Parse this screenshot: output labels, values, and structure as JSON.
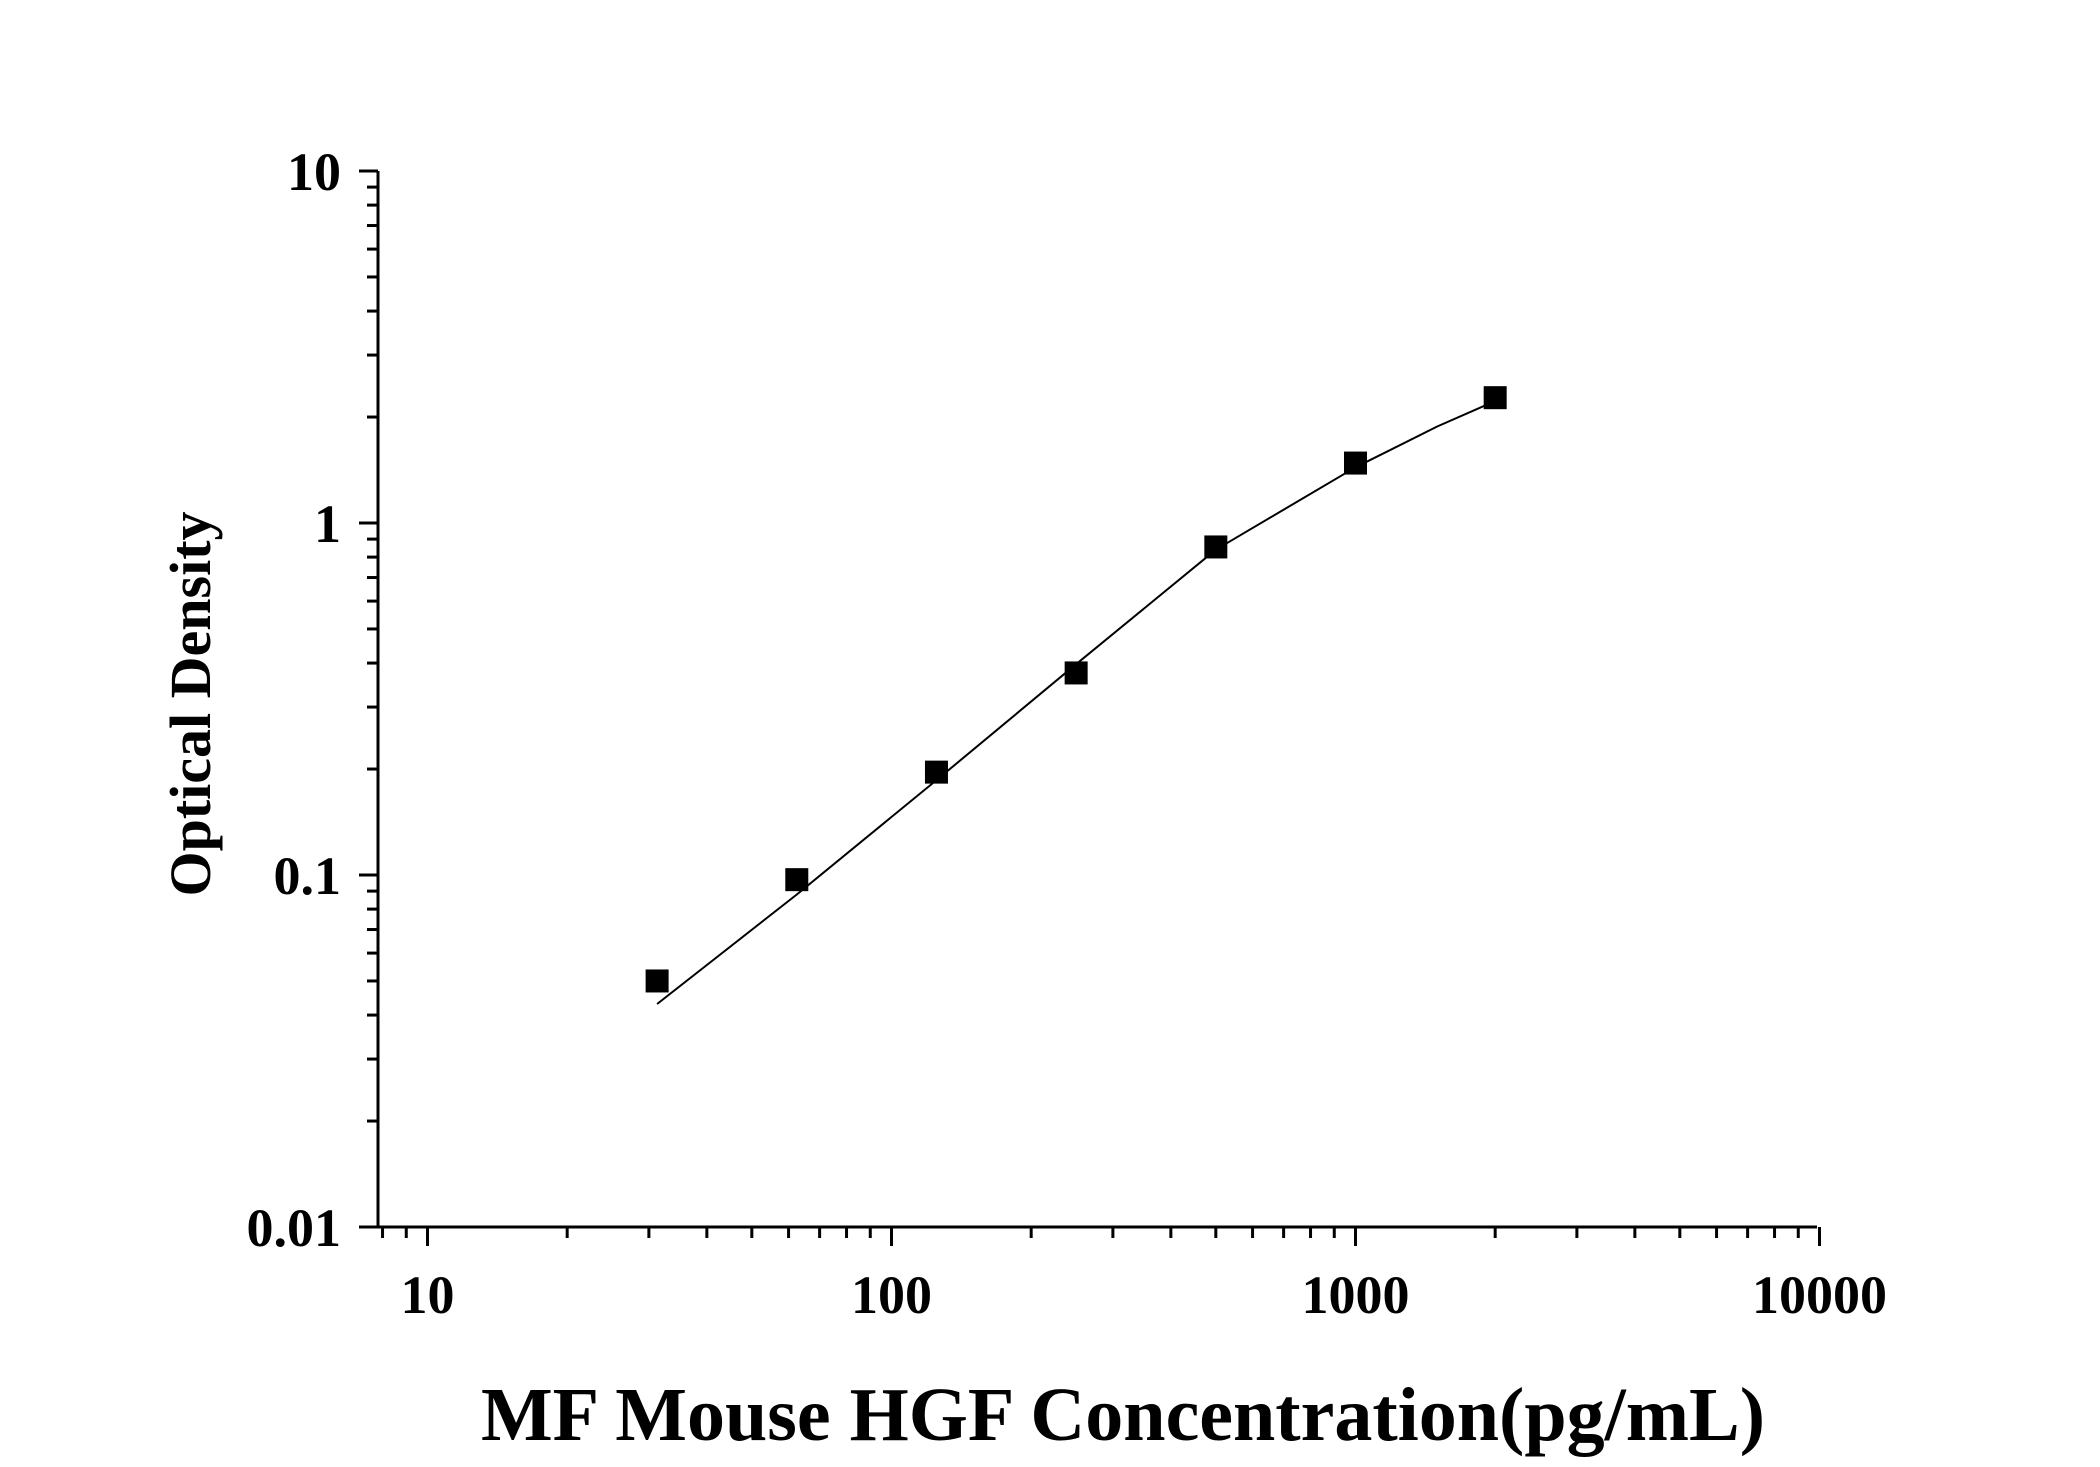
{
  "chart_data": {
    "type": "scatter",
    "x_scale": "log",
    "y_scale": "log",
    "xlabel": "MF Mouse HGF Concentration(pg/mL)",
    "ylabel": "Optical Density",
    "xlim": [
      8,
      10000
    ],
    "ylim": [
      0.01,
      10
    ],
    "x_ticks": [
      {
        "value": 10,
        "label": "10"
      },
      {
        "value": 100,
        "label": "100"
      },
      {
        "value": 1000,
        "label": "1000"
      },
      {
        "value": 10000,
        "label": "10000"
      }
    ],
    "y_ticks": [
      {
        "value": 0.01,
        "label": "0.01"
      },
      {
        "value": 0.1,
        "label": "0.1"
      },
      {
        "value": 1,
        "label": "1"
      },
      {
        "value": 10,
        "label": "10"
      }
    ],
    "grid": false,
    "legend": "none",
    "series": [
      {
        "x": [
          31.25,
          62.5,
          125,
          250,
          500,
          1000,
          2000
        ],
        "y": [
          0.05,
          0.097,
          0.196,
          0.375,
          0.855,
          1.48,
          2.27
        ],
        "marker": "square",
        "color": "#000000"
      }
    ],
    "fit_curve": {
      "x": [
        31.25,
        62.5,
        125,
        250,
        500,
        1000,
        1500,
        2000
      ],
      "y": [
        0.043,
        0.088,
        0.186,
        0.397,
        0.84,
        1.44,
        1.88,
        2.22
      ],
      "color": "#000000"
    }
  }
}
